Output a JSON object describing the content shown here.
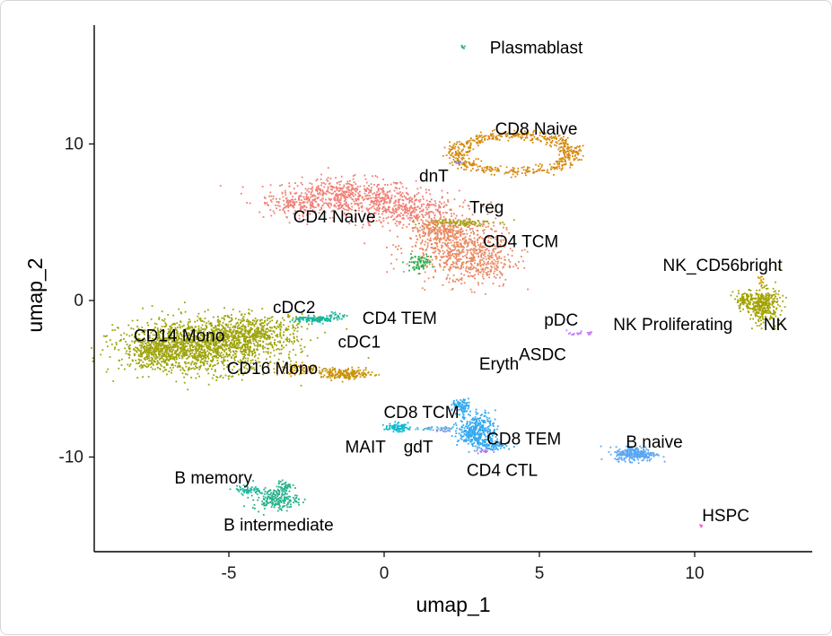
{
  "chart_data": {
    "type": "scatter",
    "title": "",
    "xlabel": "umap_1",
    "ylabel": "umap_2",
    "xlim": [
      -9.4,
      13.8
    ],
    "ylim": [
      -16.3,
      17.8
    ],
    "xticks": [
      -5,
      0,
      5,
      10
    ],
    "yticks": [
      -10,
      0,
      10
    ],
    "xtick_labels": [
      "-5",
      "0",
      "5",
      "10"
    ],
    "ytick_labels": [
      "-10",
      "0",
      "10"
    ],
    "legend": "none",
    "clusters": [
      {
        "name": "CD4 Naive",
        "label": "CD4 Naive",
        "color": "#F07E74",
        "label_pos": [
          -1.6,
          5.4
        ],
        "blobs": [
          [
            -1.3,
            6.7,
            1.9,
            0.9,
            520
          ],
          [
            0.6,
            5.8,
            1.5,
            1.0,
            380
          ],
          [
            -2.8,
            6.1,
            0.9,
            0.6,
            120
          ]
        ]
      },
      {
        "name": "CD4 TCM",
        "label": "CD4 TCM",
        "color": "#E88860",
        "label_pos": [
          4.4,
          3.8
        ],
        "blobs": [
          [
            2.3,
            3.5,
            1.3,
            1.6,
            520
          ],
          [
            3.1,
            2.4,
            0.9,
            1.3,
            260
          ],
          [
            1.7,
            4.5,
            0.8,
            0.6,
            140
          ]
        ]
      },
      {
        "name": "CD8 Naive",
        "label": "CD8 Naive",
        "color": "#D58A0F",
        "label_pos": [
          4.9,
          11.0
        ],
        "ring": [
          4.2,
          9.4,
          2.0,
          1.25,
          600
        ]
      },
      {
        "name": "CD14 Mono",
        "label": "CD14 Mono",
        "color": "#9EA40B",
        "label_pos": [
          -6.6,
          -2.2
        ],
        "blobs": [
          [
            -5.9,
            -2.9,
            2.1,
            1.4,
            1500
          ],
          [
            -4.2,
            -2.0,
            1.4,
            0.9,
            400
          ],
          [
            -7.3,
            -3.3,
            0.9,
            0.8,
            300
          ]
        ]
      },
      {
        "name": "CD16 Mono",
        "label": "CD16 Mono",
        "color": "#C9930A",
        "label_pos": [
          -3.6,
          -4.3
        ],
        "blobs": [
          [
            -1.2,
            -4.7,
            0.7,
            0.28,
            200
          ],
          [
            -2.6,
            -4.4,
            0.8,
            0.3,
            80
          ]
        ]
      },
      {
        "name": "CD4 TEM",
        "label": "CD4 TEM",
        "color": "#2DAA4A",
        "label_pos": [
          0.5,
          -1.1
        ],
        "blobs": [
          [
            1.1,
            2.4,
            0.35,
            0.4,
            70
          ]
        ]
      },
      {
        "name": "Treg",
        "label": "Treg",
        "color": "#A8A31A",
        "label_pos": [
          3.3,
          6.0
        ],
        "blobs": [
          [
            2.4,
            5.0,
            0.9,
            0.2,
            110
          ]
        ]
      },
      {
        "name": "dnT",
        "label": "dnT",
        "color": "#7B7CD9",
        "label_pos": [
          1.6,
          8.0
        ],
        "blobs": [
          [
            2.4,
            8.8,
            0.1,
            0.12,
            8
          ]
        ]
      },
      {
        "name": "Plasmablast",
        "label": "Plasmablast",
        "color": "#2BB1A6",
        "label_pos": [
          4.9,
          16.2
        ],
        "blobs": [
          [
            2.5,
            16.2,
            0.08,
            0.12,
            8
          ]
        ]
      },
      {
        "name": "cDC2",
        "label": "cDC2",
        "color": "#17B59A",
        "label_pos": [
          -2.9,
          -0.4
        ],
        "blobs": [
          [
            -2.2,
            -1.2,
            0.6,
            0.18,
            120
          ],
          [
            -1.5,
            -1.0,
            0.2,
            0.15,
            20
          ]
        ]
      },
      {
        "name": "cDC1",
        "label": "cDC1",
        "color": "#2AB87D",
        "label_pos": [
          -0.8,
          -2.6
        ],
        "blobs": [
          [
            -1.3,
            -1.0,
            0.05,
            0.05,
            3
          ]
        ]
      },
      {
        "name": "pDC",
        "label": "pDC",
        "color": "#C77CFF",
        "label_pos": [
          5.7,
          -1.2
        ],
        "blobs": [
          [
            6.3,
            -2.1,
            0.3,
            0.1,
            25
          ]
        ]
      },
      {
        "name": "NK",
        "label": "NK",
        "color": "#A3A300",
        "label_pos": [
          12.6,
          -1.5
        ],
        "blobs": [
          [
            12.2,
            -0.3,
            0.45,
            0.9,
            340
          ],
          [
            11.6,
            0.0,
            0.3,
            0.4,
            80
          ]
        ]
      },
      {
        "name": "NK_CD56bright",
        "label": "NK_CD56bright",
        "color": "#D9A000",
        "label_pos": [
          10.9,
          2.3
        ],
        "blobs": [
          [
            12.1,
            1.3,
            0.1,
            0.2,
            12
          ]
        ]
      },
      {
        "name": "NK Proliferating",
        "label": "NK Proliferating",
        "color": "#8F9A10",
        "label_pos": [
          9.3,
          -1.5
        ],
        "blobs": [
          [
            11.8,
            0.7,
            0.05,
            0.05,
            3
          ]
        ]
      },
      {
        "name": "ASDC",
        "label": "ASDC",
        "color": "#E07AD0",
        "label_pos": [
          5.1,
          -3.4
        ],
        "blobs": [
          [
            4.6,
            -3.4,
            0.03,
            0.03,
            2
          ]
        ]
      },
      {
        "name": "Eryth",
        "label": "Eryth",
        "color": "#B39400",
        "label_pos": [
          3.7,
          -4.0
        ],
        "blobs": [
          [
            3.7,
            -4.0,
            0.03,
            0.03,
            2
          ]
        ]
      },
      {
        "name": "CD8 TCM",
        "label": "CD8 TCM",
        "color": "#0BBBD3",
        "label_pos": [
          1.2,
          -7.1
        ],
        "blobs": [
          [
            0.4,
            -8.1,
            0.3,
            0.22,
            80
          ]
        ]
      },
      {
        "name": "CD8 TEM",
        "label": "CD8 TEM",
        "color": "#33A9F0",
        "label_pos": [
          4.5,
          -8.8
        ],
        "blobs": [
          [
            3.0,
            -8.3,
            0.5,
            0.9,
            380
          ],
          [
            2.5,
            -6.8,
            0.25,
            0.4,
            80
          ],
          [
            3.5,
            -9.3,
            0.4,
            0.3,
            80
          ]
        ]
      },
      {
        "name": "CD4 CTL",
        "label": "CD4 CTL",
        "color": "#B07DF0",
        "label_pos": [
          3.8,
          -10.8
        ],
        "blobs": [
          [
            3.2,
            -9.6,
            0.2,
            0.15,
            15
          ]
        ]
      },
      {
        "name": "MAIT",
        "label": "MAIT",
        "color": "#4FB7E0",
        "label_pos": [
          -0.6,
          -9.3
        ],
        "blobs": [
          [
            1.5,
            -8.2,
            0.6,
            0.1,
            40
          ]
        ]
      },
      {
        "name": "gdT",
        "label": "gdT",
        "color": "#8C96DE",
        "label_pos": [
          1.1,
          -9.3
        ],
        "blobs": [
          [
            1.9,
            -8.3,
            0.3,
            0.1,
            15
          ]
        ]
      },
      {
        "name": "B naive",
        "label": "B naive",
        "color": "#5AA6F2",
        "label_pos": [
          8.7,
          -9.0
        ],
        "blobs": [
          [
            8.1,
            -9.8,
            0.55,
            0.38,
            280
          ]
        ]
      },
      {
        "name": "B memory",
        "label": "B memory",
        "color": "#20B9A0",
        "label_pos": [
          -5.5,
          -11.3
        ],
        "blobs": [
          [
            -4.4,
            -12.1,
            0.4,
            0.2,
            60
          ]
        ]
      },
      {
        "name": "B intermediate",
        "label": "B intermediate",
        "color": "#23B18A",
        "label_pos": [
          -3.4,
          -14.3
        ],
        "blobs": [
          [
            -3.5,
            -12.7,
            0.6,
            0.55,
            200
          ],
          [
            -3.2,
            -11.9,
            0.2,
            0.3,
            40
          ]
        ]
      },
      {
        "name": "HSPC",
        "label": "HSPC",
        "color": "#F068C8",
        "label_pos": [
          11.0,
          -13.7
        ],
        "blobs": [
          [
            10.2,
            -14.4,
            0.05,
            0.1,
            6
          ]
        ]
      }
    ]
  }
}
